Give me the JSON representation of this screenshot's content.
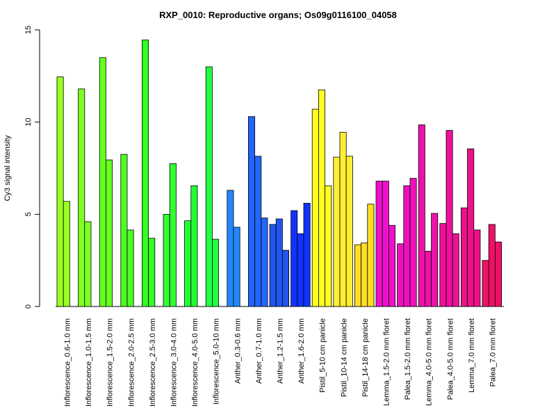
{
  "chart_data": {
    "type": "bar",
    "title": "RXP_0010: Reproductive organs; Os09g0116100_04058",
    "xlabel": "",
    "ylabel": "Cy3 signal intensity",
    "ylim": [
      0,
      15
    ],
    "yticks": [
      "0",
      "5",
      "10",
      "15"
    ],
    "grid": false,
    "legend": "none",
    "groups": [
      {
        "label": "Inflorescence_0.6-1.0 mm",
        "color": "#99ff22",
        "values": [
          12.45,
          5.7
        ]
      },
      {
        "label": "Inflorescence_1.0-1.5 mm",
        "color": "#80ff22",
        "values": [
          11.8,
          4.6
        ]
      },
      {
        "label": "Inflorescence_1.5-2.0 mm",
        "color": "#66ff22",
        "values": [
          13.5,
          7.95
        ]
      },
      {
        "label": "Inflorescence_2.0-2.5 mm",
        "color": "#4dff22",
        "values": [
          8.25,
          4.15
        ]
      },
      {
        "label": "Inflorescence_2.5-3.0 mm",
        "color": "#33ff22",
        "values": [
          14.45,
          3.7
        ]
      },
      {
        "label": "Inflorescence_3.0-4.0 mm",
        "color": "#33ff33",
        "values": [
          5.0,
          7.75
        ]
      },
      {
        "label": "Inflorescence_4.0-5.0 mm",
        "color": "#22ff33",
        "values": [
          4.65,
          6.55
        ]
      },
      {
        "label": "Inflorescence_5.0-10 mm",
        "color": "#22ff44",
        "values": [
          13.0,
          3.65
        ]
      },
      {
        "label": "Anther_0.3-0.6 mm",
        "color": "#2288ff",
        "values": [
          6.3,
          4.3
        ]
      },
      {
        "label": "Anther_0.7-1.0 mm",
        "color": "#2266ff",
        "values": [
          10.3,
          8.15,
          4.8
        ]
      },
      {
        "label": "Anther_1.2-1.5 mm",
        "color": "#2255ee",
        "values": [
          4.45,
          4.75,
          3.05
        ]
      },
      {
        "label": "Anther_1.6-2.0 mm",
        "color": "#1133ff",
        "values": [
          5.2,
          3.95,
          5.6
        ]
      },
      {
        "label": "Pistil_5-10 cm panicle",
        "color": "#ffff22",
        "values": [
          10.7,
          11.75,
          6.55
        ]
      },
      {
        "label": "Pistil_10-14 cm panicle",
        "color": "#ffee33",
        "values": [
          8.1,
          9.45,
          8.15
        ]
      },
      {
        "label": "Pistil_14-18 cm panicle",
        "color": "#ffdd22",
        "values": [
          3.35,
          3.45,
          5.55
        ]
      },
      {
        "label": "Lemma_1.5-2.0 mm floret",
        "color": "#ee11cc",
        "values": [
          6.8,
          6.8,
          4.4
        ]
      },
      {
        "label": "Palea_1.5-2.0 mm floret",
        "color": "#ee11bb",
        "values": [
          3.4,
          6.55,
          6.95
        ]
      },
      {
        "label": "Lemma_4.0-5.0 mm floret",
        "color": "#ee11aa",
        "values": [
          9.85,
          3.0,
          5.05
        ]
      },
      {
        "label": "Palea_4.0-5.0 mm floret",
        "color": "#ee1199",
        "values": [
          4.5,
          9.55,
          3.95
        ]
      },
      {
        "label": "Lemma_7.0 mm floret",
        "color": "#ee1188",
        "values": [
          5.35,
          8.55,
          4.15
        ]
      },
      {
        "label": "Palea_7.0 mm floret",
        "color": "#ee1166",
        "values": [
          2.5,
          4.45,
          3.5
        ]
      }
    ]
  }
}
